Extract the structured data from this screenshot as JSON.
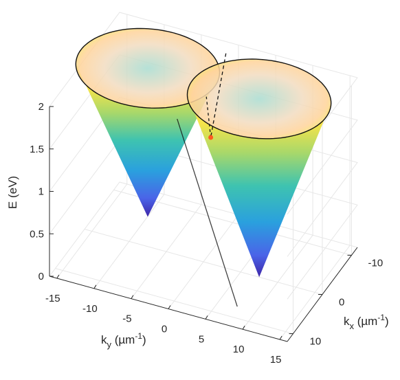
{
  "chart_data": {
    "type": "surface3d",
    "title": "",
    "axes": {
      "x": {
        "label": "k",
        "label_sub": "x",
        "unit_text": " (µm",
        "unit_sup": "-1",
        "unit_close": ")",
        "ticks": [
          -10,
          0,
          10
        ],
        "tick_labels": [
          "-10",
          "0",
          "10"
        ],
        "range": [
          -12,
          12
        ]
      },
      "y": {
        "label": "k",
        "label_sub": "y",
        "unit_text": " (µm",
        "unit_sup": "-1",
        "unit_close": ")",
        "ticks": [
          -15,
          -10,
          -5,
          0,
          5,
          10,
          15
        ],
        "tick_labels": [
          "-15",
          "-10",
          "-5",
          "0",
          "5",
          "10",
          "15"
        ],
        "range": [
          -16,
          16
        ]
      },
      "z": {
        "label": "E (eV)",
        "ticks": [
          0,
          0.5,
          1,
          1.5,
          2
        ],
        "tick_labels": [
          "0",
          "0.5",
          "1",
          "1.5",
          "2"
        ],
        "range": [
          0,
          2
        ]
      }
    },
    "cones": [
      {
        "name": "",
        "apex_kx": 0,
        "apex_ky": -7.5,
        "apex_E": 0.35,
        "top_E": 2.1,
        "radius_top": 9
      },
      {
        "name": "",
        "apex_kx": 0,
        "apex_ky": 7.5,
        "apex_E": 0.0,
        "top_E": 2.1,
        "radius_top": 9
      }
    ],
    "intersection_point": {
      "kx": -2.5,
      "ky": 0,
      "E": 1.35,
      "color": "#ff5a1f"
    },
    "colormap": [
      "#3e26a8",
      "#2a7ee0",
      "#1fb0c9",
      "#6fcf97",
      "#d9e55a",
      "#fbe44b",
      "#ffd39a"
    ],
    "grid": true
  }
}
